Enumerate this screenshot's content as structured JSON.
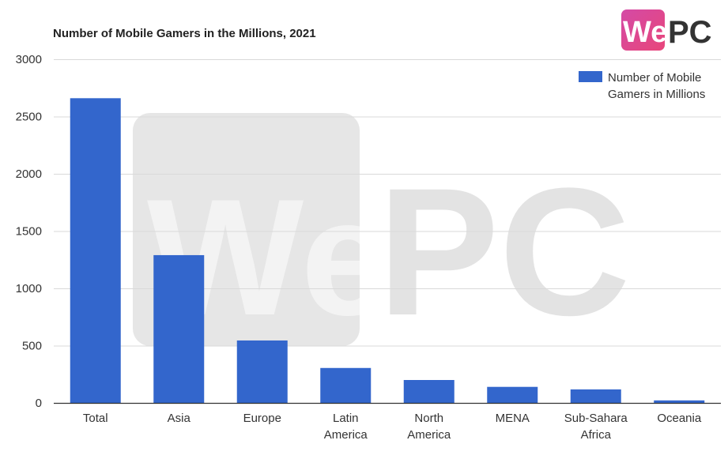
{
  "brand": {
    "logo_we": "We",
    "logo_pc": "PC",
    "logo_gradient_start": "#d44aa6",
    "logo_gradient_end": "#e8467a",
    "logo_pc_color": "#333333",
    "watermark_text_we": "We",
    "watermark_text_pc": "PC"
  },
  "colors": {
    "bar": "#3366cc",
    "grid": "#d9d9d9"
  },
  "chart_data": {
    "type": "bar",
    "title": "Number of Mobile Gamers in the Millions, 2021",
    "xlabel": "",
    "ylabel": "",
    "categories": [
      [
        "Total"
      ],
      [
        "Asia"
      ],
      [
        "Europe"
      ],
      [
        "Latin",
        "America"
      ],
      [
        "North",
        "America"
      ],
      [
        "MENA"
      ],
      [
        "Sub-Sahara",
        "Africa"
      ],
      [
        "Oceania"
      ]
    ],
    "series": [
      {
        "name": "Number of Mobile Gamers in Millions",
        "values": [
          2660,
          1290,
          545,
          305,
          200,
          140,
          118,
          22
        ]
      }
    ],
    "ylim": [
      0,
      3000
    ],
    "yticks": [
      "0",
      "500",
      "1000",
      "1500",
      "2000",
      "2500",
      "3000"
    ],
    "grid": true,
    "legend": {
      "position": "top-right",
      "lines": [
        "Number of Mobile",
        "Gamers in Millions"
      ]
    }
  }
}
